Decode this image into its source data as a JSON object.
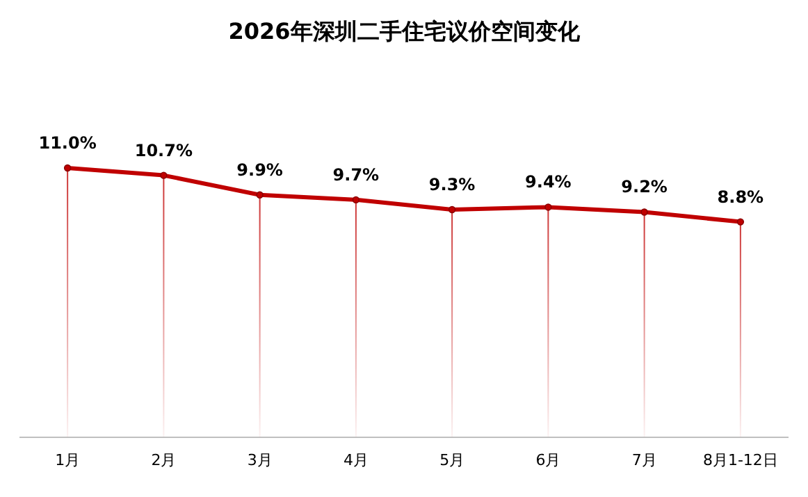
{
  "chart_data": {
    "type": "line",
    "title": "2026年深圳二手住宅议价空间变化",
    "categories": [
      "1月",
      "2月",
      "3月",
      "4月",
      "5月",
      "6月",
      "7月",
      "8月1-12日"
    ],
    "series": [
      {
        "type": "lollipop",
        "color": "#c00000",
        "values": [
          11.0,
          10.7,
          9.9,
          9.7,
          9.3,
          9.4,
          9.2,
          8.8
        ]
      },
      {
        "color": "#c00000",
        "marker": "none",
        "line_style": "solid",
        "values": [
          11.0,
          10.7,
          9.9,
          9.7,
          9.3,
          9.4,
          9.2,
          8.8
        ],
        "value_labels": [
          "11.0%",
          "10.7%",
          "9.9%",
          "9.7%",
          "9.3%",
          "9.4%",
          "9.2%",
          "8.8%"
        ]
      }
    ]
  }
}
